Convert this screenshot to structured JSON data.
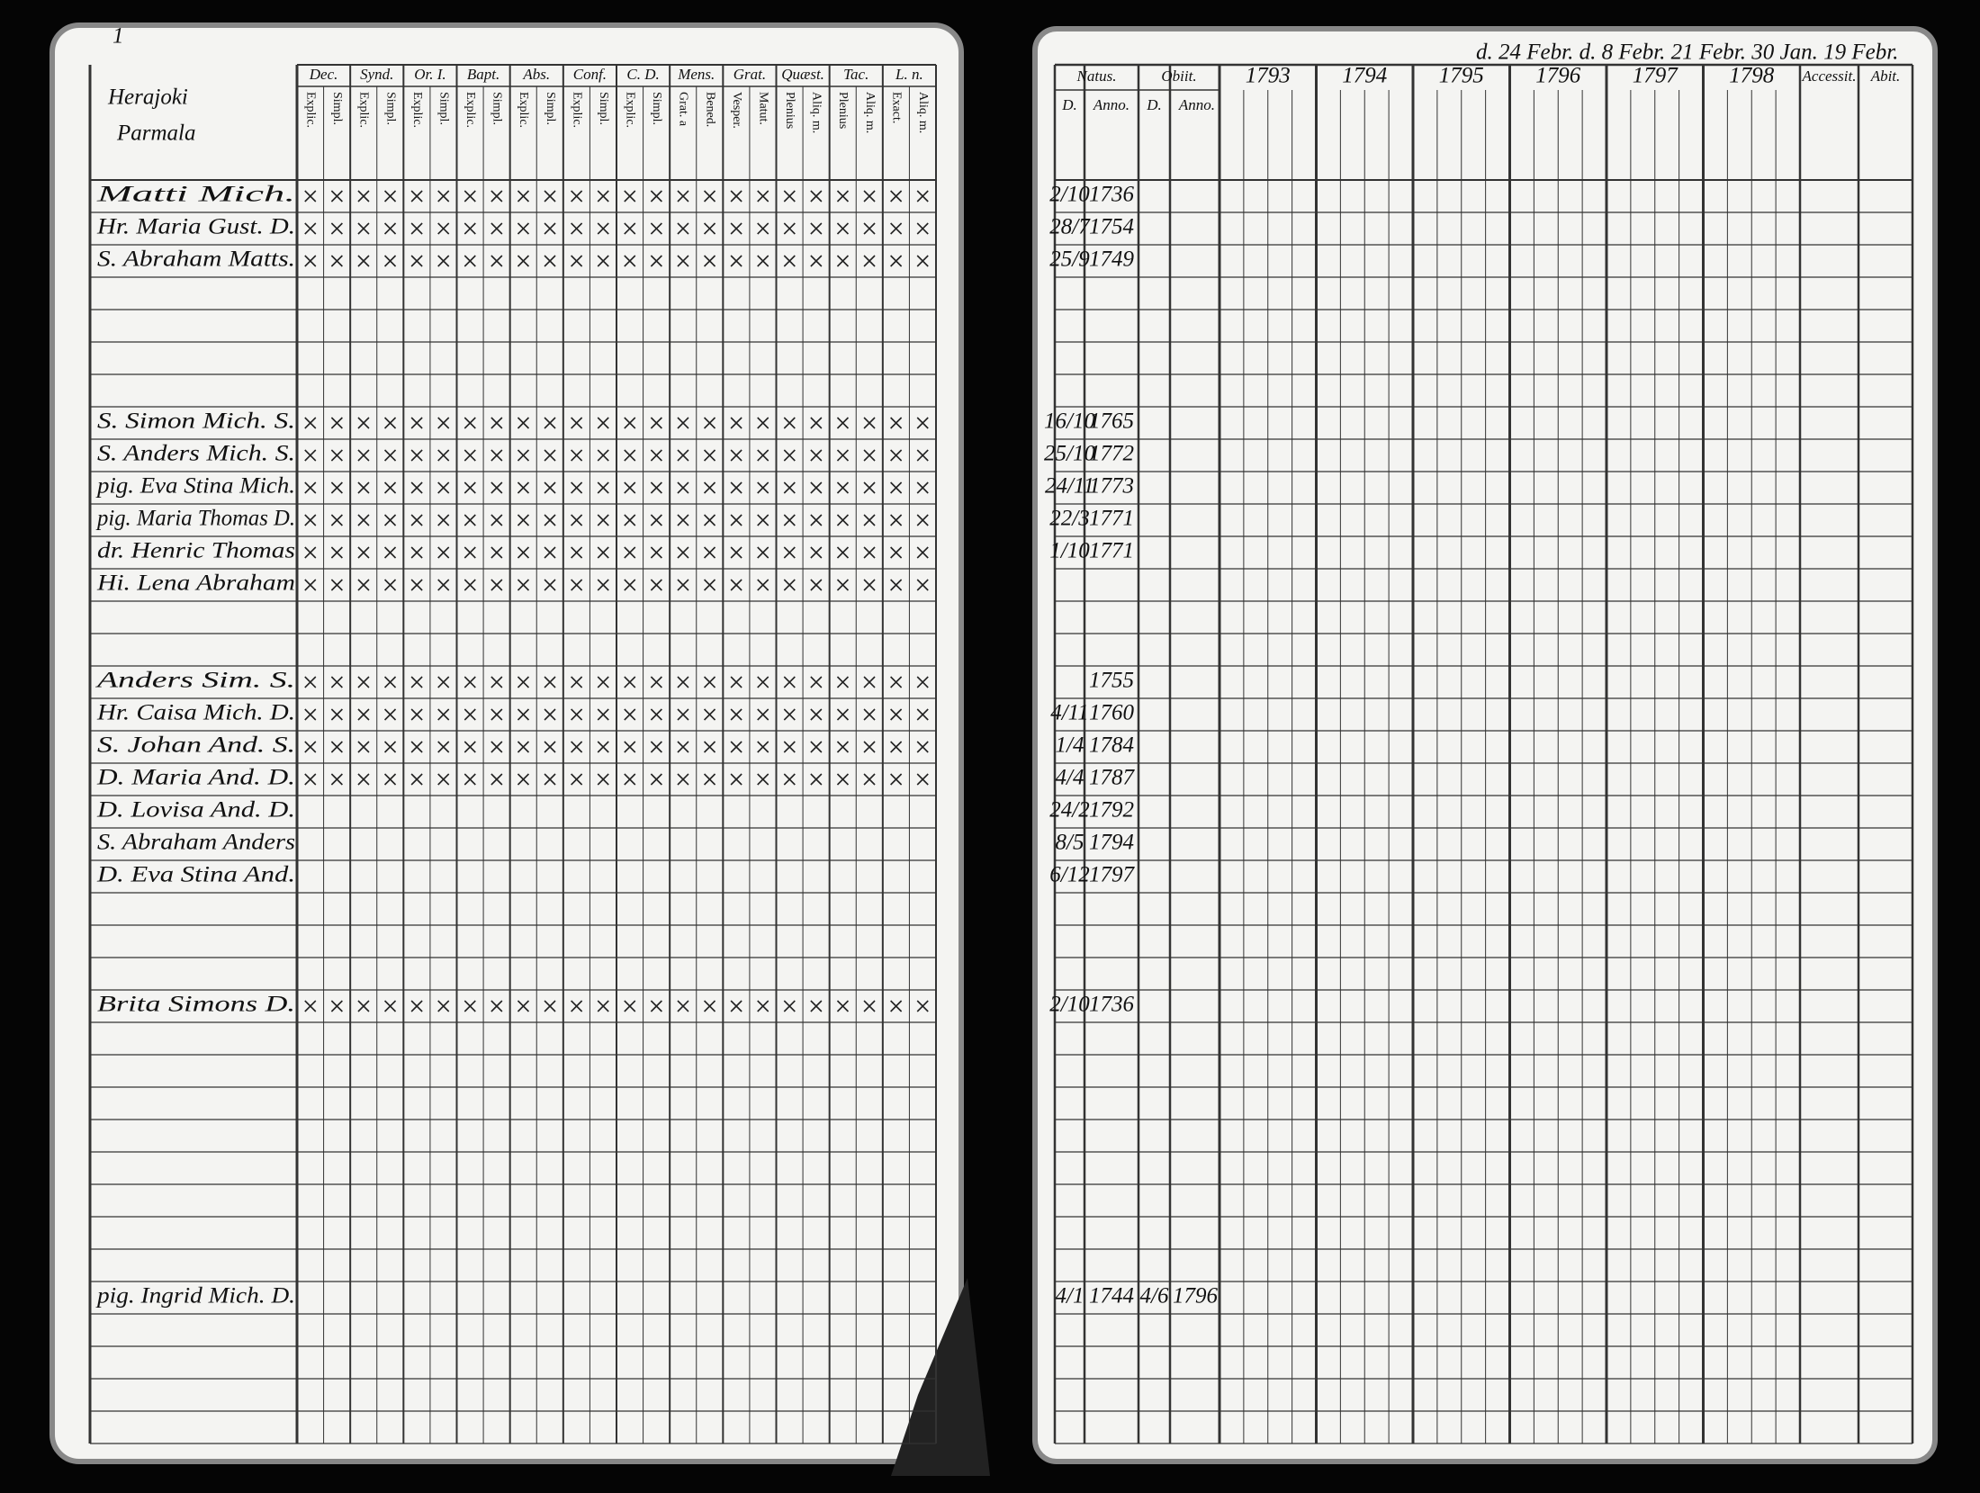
{
  "corner": "1",
  "left": {
    "parish": [
      "Herajoki",
      "Parmala"
    ],
    "columns": [
      {
        "name": "Dec.",
        "sub": [
          "Explic.",
          "Simpl."
        ]
      },
      {
        "name": "Synd.",
        "sub": [
          "Explic.",
          "Simpl."
        ]
      },
      {
        "name": "Or. I.",
        "sub": [
          "Explic.",
          "Simpl."
        ]
      },
      {
        "name": "Bapt.",
        "sub": [
          "Explic.",
          "Simpl."
        ]
      },
      {
        "name": "Abs.",
        "sub": [
          "Explic.",
          "Simpl."
        ]
      },
      {
        "name": "Conf.",
        "sub": [
          "Explic.",
          "Simpl."
        ]
      },
      {
        "name": "C. D.",
        "sub": [
          "Explic.",
          "Simpl."
        ]
      },
      {
        "name": "Mens.",
        "sub": [
          "Grat. a",
          "Bened."
        ]
      },
      {
        "name": "Grat.",
        "sub": [
          "Vesper.",
          "Matut."
        ]
      },
      {
        "name": "Quæst.",
        "sub": [
          "Plenius",
          "Aliq. m."
        ]
      },
      {
        "name": "Tac.",
        "sub": [
          "Plenius",
          "Aliq. m."
        ]
      },
      {
        "name": "L. n.",
        "sub": [
          "Exact.",
          "Aliq. m."
        ]
      }
    ],
    "persons": [
      {
        "name": "Matti Mich.",
        "born": {
          "day": "2/10",
          "year": "1736"
        }
      },
      {
        "name": "Hr. Maria Gust. D.",
        "born": {
          "day": "28/7",
          "year": "1754"
        }
      },
      {
        "name": "S. Abraham Matts.",
        "born": {
          "day": "25/9",
          "year": "1749"
        }
      },
      {
        "name": "S. Simon Mich. S.",
        "born": {
          "day": "16/10",
          "year": "1765"
        }
      },
      {
        "name": "S. Anders Mich. S.",
        "born": {
          "day": "25/10",
          "year": "1772"
        }
      },
      {
        "name": "pig. Eva Stina Mich.",
        "born": {
          "day": "24/11",
          "year": "1773"
        }
      },
      {
        "name": "pig. Maria Thomas D.",
        "born": {
          "day": "22/3",
          "year": "1771"
        }
      },
      {
        "name": "dr. Henric Thomas",
        "born": {
          "day": "1/10",
          "year": "1771"
        }
      },
      {
        "name": "Hi. Lena Abraham"
      },
      {
        "name": "Anders Sim. S.",
        "born": {
          "year": "1755"
        }
      },
      {
        "name": "Hr. Caisa Mich. D.",
        "born": {
          "day": "4/11",
          "year": "1760"
        }
      },
      {
        "name": "S. Johan And. S.",
        "born": {
          "day": "1/4",
          "year": "1784"
        }
      },
      {
        "name": "D. Maria And. D.",
        "born": {
          "day": "4/4",
          "year": "1787"
        }
      },
      {
        "name": "D. Lovisa And. D.",
        "born": {
          "day": "24/2",
          "year": "1792"
        }
      },
      {
        "name": "S. Abraham Anders",
        "born": {
          "day": "8/5",
          "year": "1794"
        }
      },
      {
        "name": "D. Eva Stina And.",
        "born": {
          "day": "6/12",
          "year": "1797"
        }
      },
      {
        "name": "Brita Simons D.",
        "born": {
          "day": "2/10",
          "year": "1736"
        }
      },
      {
        "name": "pig. Ingrid Mich. D.",
        "born": {
          "day": "4/1",
          "year": "1744"
        },
        "died": {
          "day": "4/6",
          "year": "1796"
        }
      }
    ]
  },
  "right": {
    "note": "d. 24 Febr.  d. 8 Febr. 21 Febr. 30 Jan. 19 Febr.",
    "natus": "Natus.",
    "obiit": "Obiit.",
    "day": "D.",
    "anno": "Anno.",
    "accessit": "Accessit.",
    "abit": "Abit.",
    "years": [
      "1793",
      "1794",
      "1795",
      "1796",
      "1797",
      "1798"
    ]
  }
}
